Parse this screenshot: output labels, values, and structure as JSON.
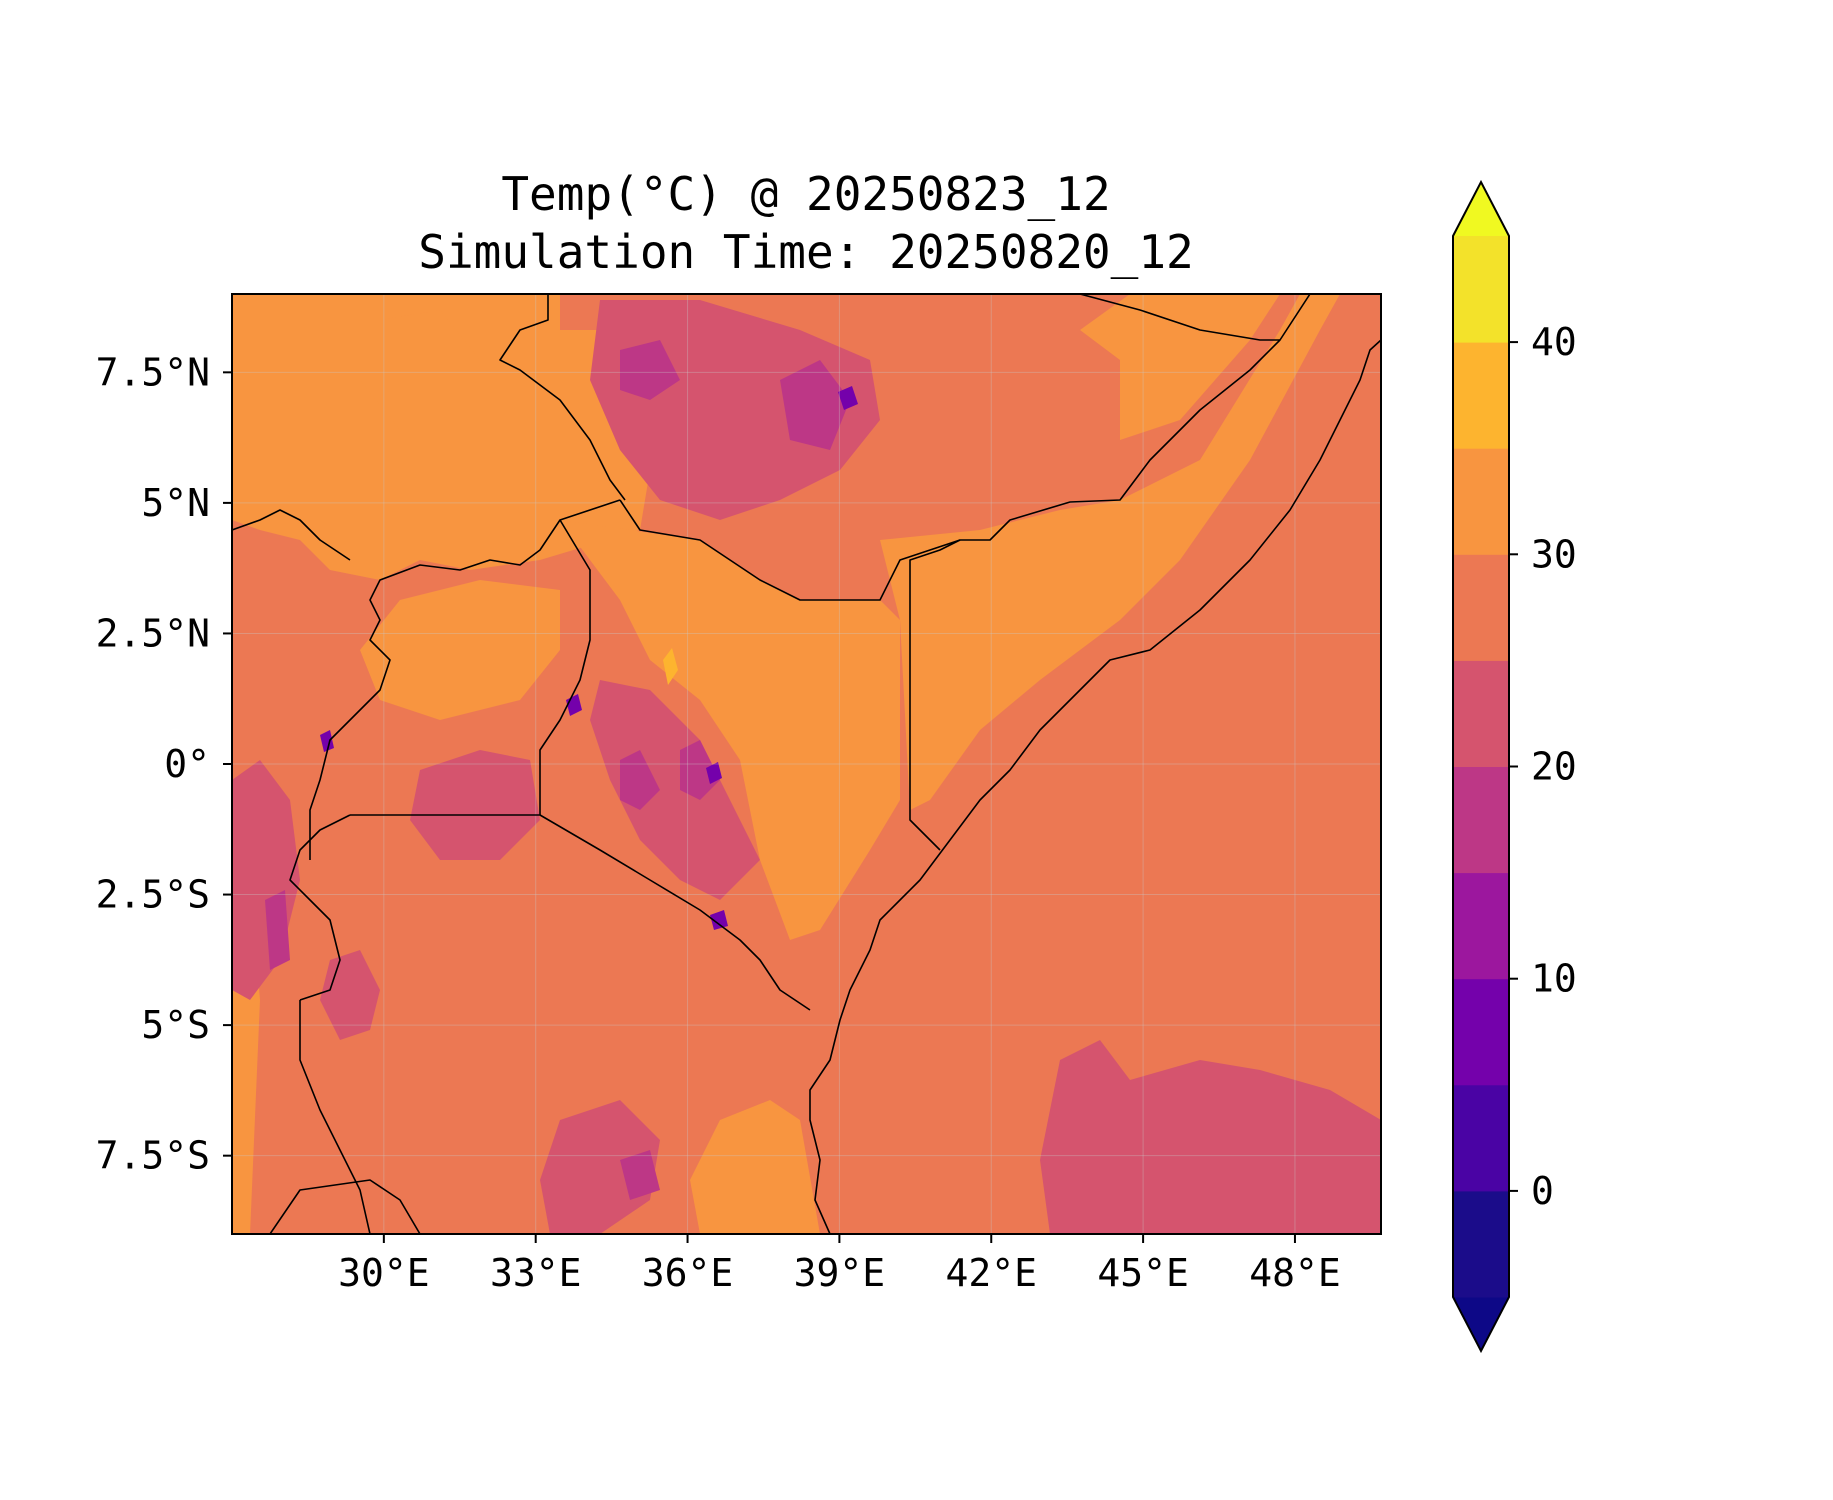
{
  "title": {
    "line1": "Temp(°C) @ 20250823_12",
    "line2": "Simulation Time: 20250820_12"
  },
  "chart_data": {
    "type": "heatmap",
    "variable": "Temp(°C)",
    "x_axis": {
      "range": [
        27.0,
        49.7
      ],
      "ticks": [
        30,
        33,
        36,
        39,
        42,
        45,
        48
      ],
      "tick_labels": [
        "30°E",
        "33°E",
        "36°E",
        "39°E",
        "42°E",
        "45°E",
        "48°E"
      ]
    },
    "y_axis": {
      "range": [
        -9.0,
        9.0
      ],
      "ticks": [
        7.5,
        5,
        2.5,
        0,
        -2.5,
        -5,
        -7.5
      ],
      "tick_labels": [
        "7.5°N",
        "5°N",
        "2.5°N",
        "0°",
        "2.5°S",
        "5°S",
        "7.5°S"
      ]
    },
    "grid": true,
    "colorbar": {
      "placement": "right",
      "extend": "both",
      "levels": [
        -5,
        0,
        5,
        10,
        15,
        20,
        25,
        30,
        35,
        40,
        45
      ],
      "colors": [
        "#1b0c8a",
        "#4a03a4",
        "#7401ab",
        "#9c179e",
        "#bd3786",
        "#d5546e",
        "#ec7853",
        "#f89540",
        "#fdb42f",
        "#f3e22a"
      ],
      "under_color": "#0d0887",
      "over_color": "#f0f921",
      "ticks": [
        0,
        10,
        20,
        30,
        40
      ],
      "tick_labels": [
        "0",
        "10",
        "20",
        "30",
        "40"
      ]
    }
  },
  "colors": {
    "background_base": "#ec7853",
    "ocean_cool": "#d5546e",
    "border_line": "#000000"
  }
}
